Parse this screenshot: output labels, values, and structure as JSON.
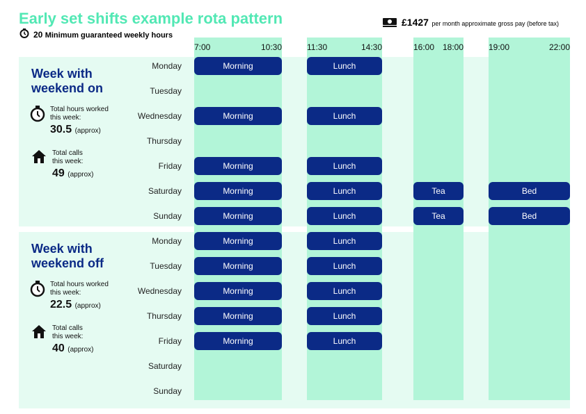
{
  "title": "Early set shifts example rota pattern",
  "guaranteed": {
    "hours": 20,
    "label": "Minimum guaranteed weekly hours"
  },
  "pay": {
    "amount": "£1427",
    "label": "per month approximate gross pay (before tax)"
  },
  "time_columns": [
    {
      "start": "7:00",
      "end": "10:30"
    },
    {
      "start": "11:30",
      "end": "14:30"
    },
    {
      "start": "16:00",
      "end": "18:00"
    },
    {
      "start": "19:00",
      "end": "22:00"
    }
  ],
  "weeks": [
    {
      "title": "Week with weekend on",
      "hours_label": "Total hours worked this week:",
      "hours": 30.5,
      "hours_note": "(approx)",
      "calls_label": "Total calls this week:",
      "calls": 49,
      "calls_note": "(approx)",
      "days": [
        {
          "day": "Monday",
          "shifts": [
            "Morning",
            "Lunch",
            null,
            null
          ]
        },
        {
          "day": "Tuesday",
          "shifts": [
            null,
            null,
            null,
            null
          ]
        },
        {
          "day": "Wednesday",
          "shifts": [
            "Morning",
            "Lunch",
            null,
            null
          ]
        },
        {
          "day": "Thursday",
          "shifts": [
            null,
            null,
            null,
            null
          ]
        },
        {
          "day": "Friday",
          "shifts": [
            "Morning",
            "Lunch",
            null,
            null
          ]
        },
        {
          "day": "Saturday",
          "shifts": [
            "Morning",
            "Lunch",
            "Tea",
            "Bed"
          ]
        },
        {
          "day": "Sunday",
          "shifts": [
            "Morning",
            "Lunch",
            "Tea",
            "Bed"
          ]
        }
      ]
    },
    {
      "title": "Week with weekend off",
      "hours_label": "Total hours worked this week:",
      "hours": 22.5,
      "hours_note": "(approx)",
      "calls_label": "Total calls this week:",
      "calls": 40,
      "calls_note": "(approx)",
      "days": [
        {
          "day": "Monday",
          "shifts": [
            "Morning",
            "Lunch",
            null,
            null
          ]
        },
        {
          "day": "Tuesday",
          "shifts": [
            "Morning",
            "Lunch",
            null,
            null
          ]
        },
        {
          "day": "Wednesday",
          "shifts": [
            "Morning",
            "Lunch",
            null,
            null
          ]
        },
        {
          "day": "Thursday",
          "shifts": [
            "Morning",
            "Lunch",
            null,
            null
          ]
        },
        {
          "day": "Friday",
          "shifts": [
            "Morning",
            "Lunch",
            null,
            null
          ]
        },
        {
          "day": "Saturday",
          "shifts": [
            null,
            null,
            null,
            null
          ]
        },
        {
          "day": "Sunday",
          "shifts": [
            null,
            null,
            null,
            null
          ]
        }
      ]
    }
  ]
}
